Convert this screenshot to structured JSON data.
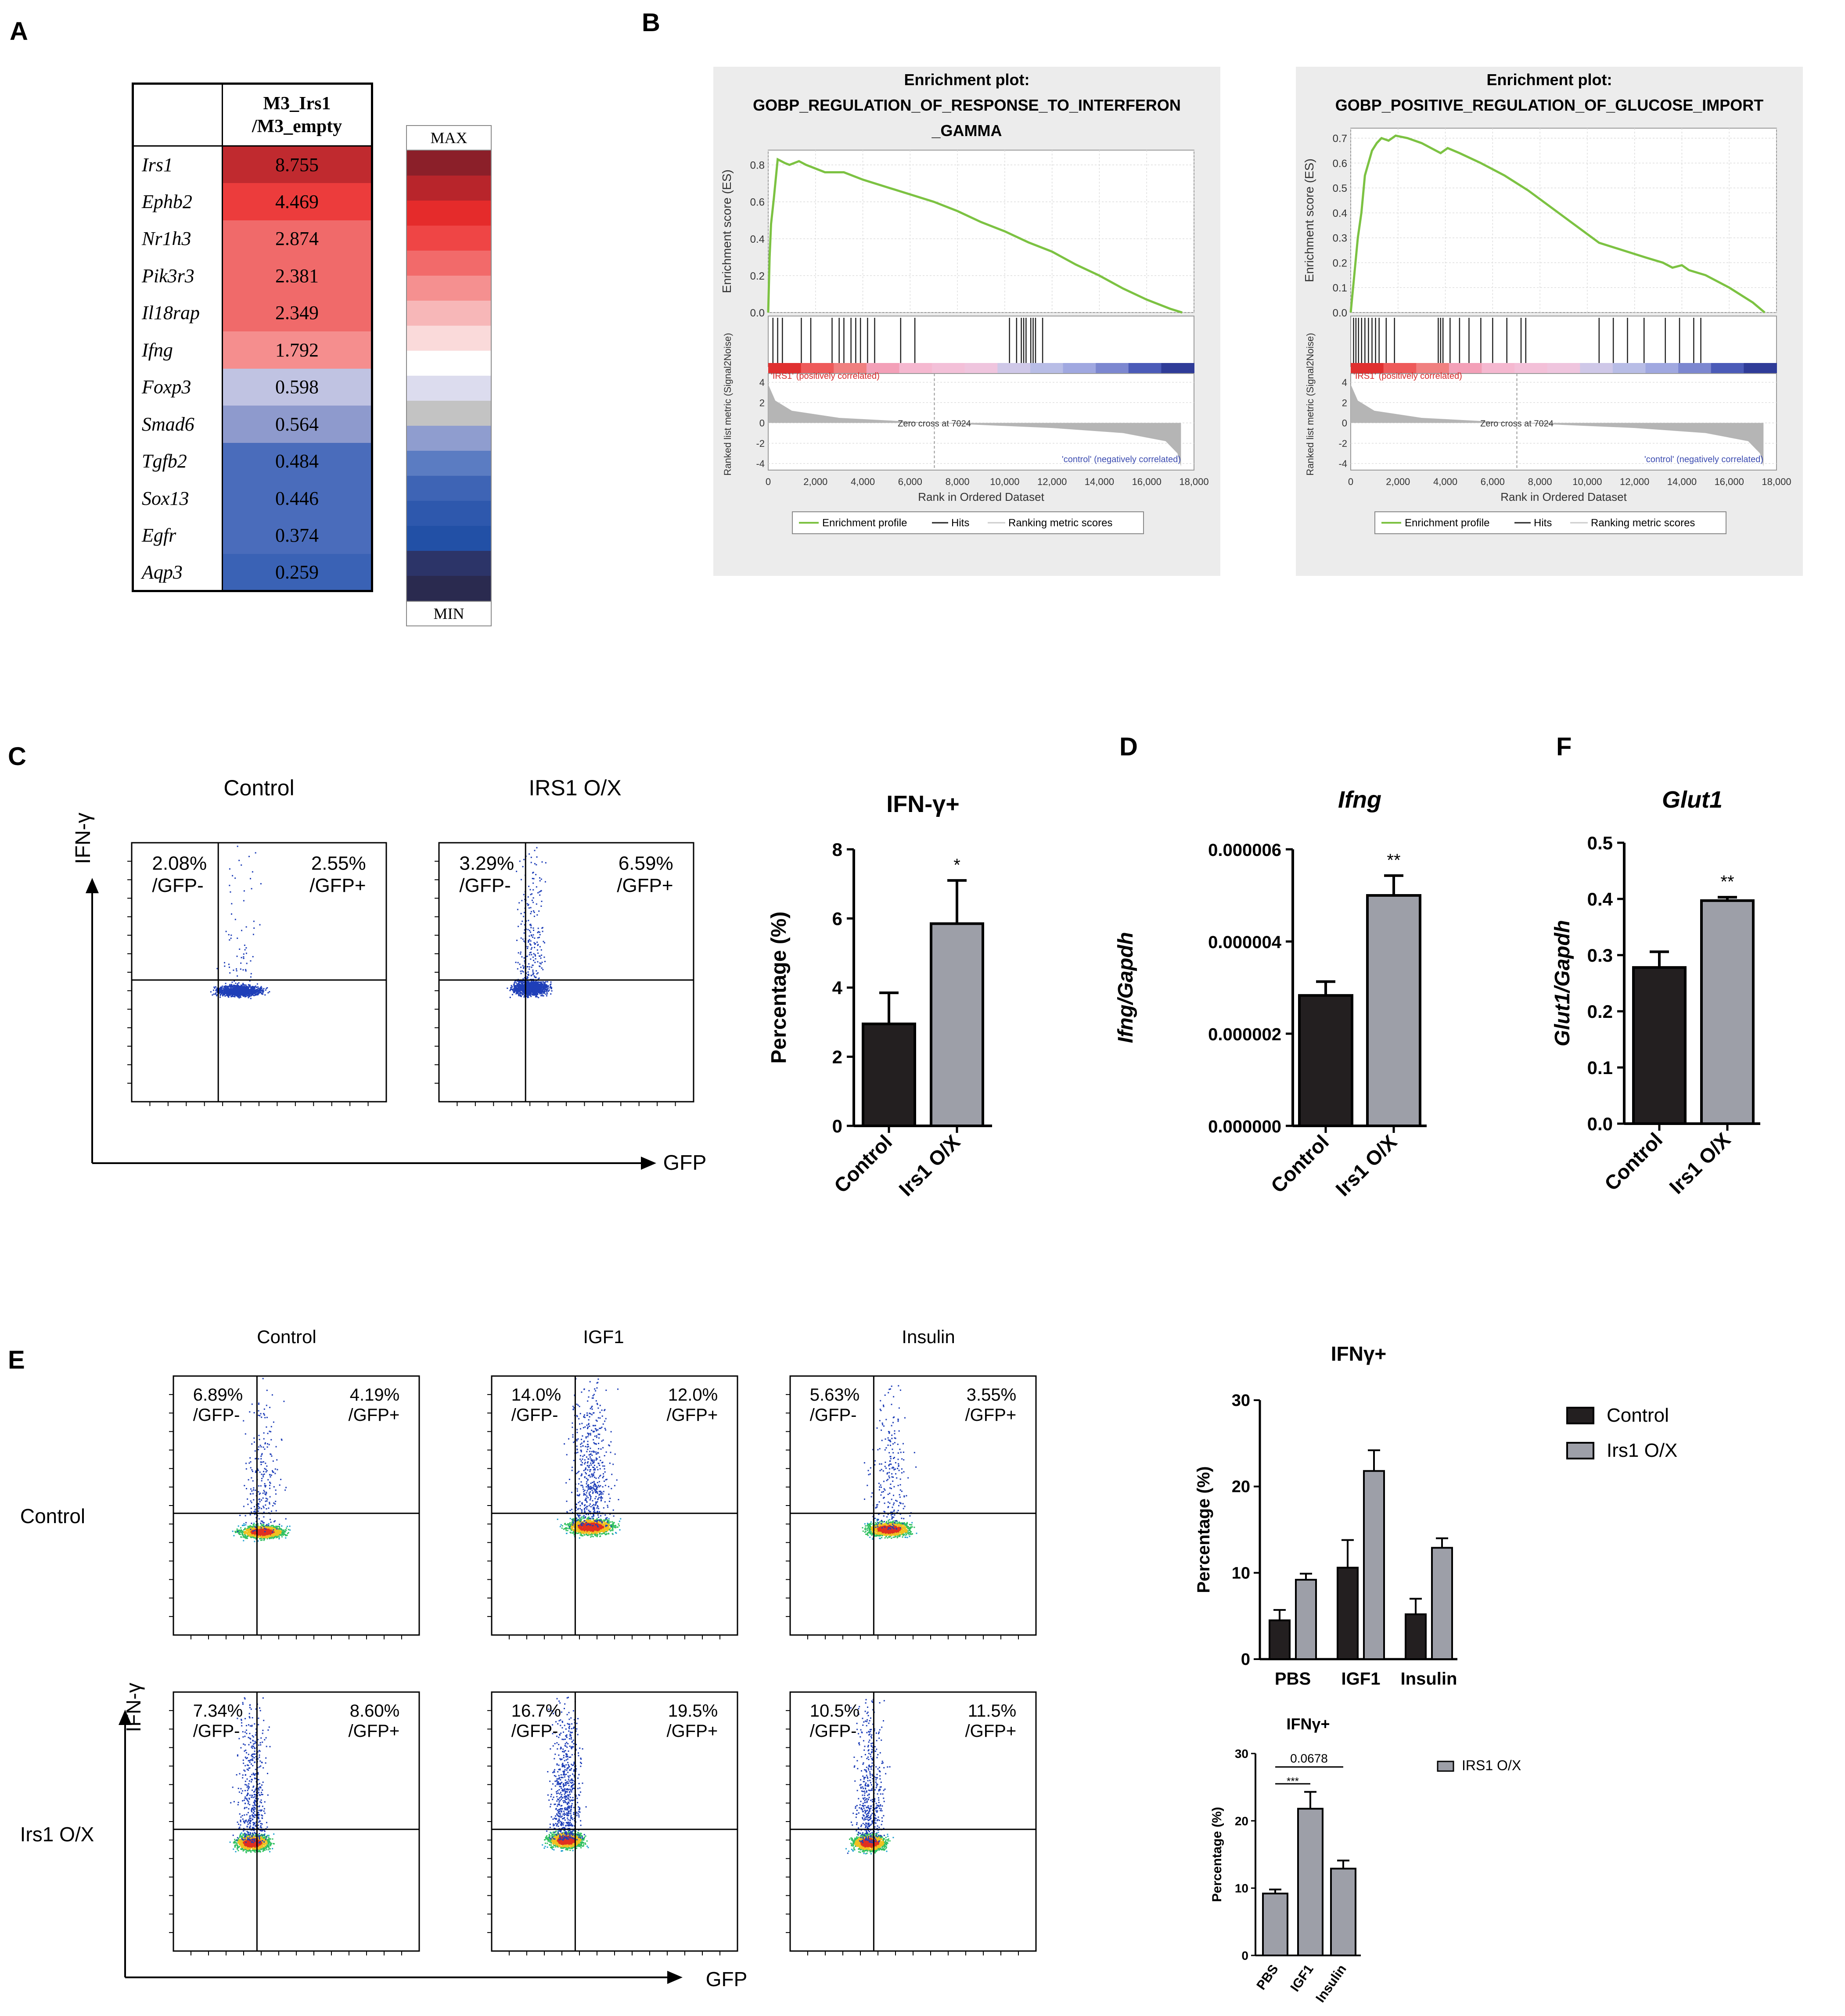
{
  "panel_labels": {
    "a": "A",
    "b": "B",
    "c": "C",
    "d": "D",
    "e": "E",
    "f": "F"
  },
  "heatmap": {
    "header_line1": "M3_Irs1",
    "header_line2": "/M3_empty",
    "rows": [
      {
        "gene": "Irs1",
        "value": "8.755",
        "color": "#c02a2f"
      },
      {
        "gene": "Ephb2",
        "value": "4.469",
        "color": "#ec3c3c"
      },
      {
        "gene": "Nr1h3",
        "value": "2.874",
        "color": "#f06a6a"
      },
      {
        "gene": "Pik3r3",
        "value": "2.381",
        "color": "#f06a6a"
      },
      {
        "gene": "Il18rap",
        "value": "2.349",
        "color": "#f06a6a"
      },
      {
        "gene": "Ifng",
        "value": "1.792",
        "color": "#f58e8e"
      },
      {
        "gene": "Foxp3",
        "value": "0.598",
        "color": "#c0c3e2"
      },
      {
        "gene": "Smad6",
        "value": "0.564",
        "color": "#8e9acd"
      },
      {
        "gene": "Tgfb2",
        "value": "0.484",
        "color": "#4a6cbb"
      },
      {
        "gene": "Sox13",
        "value": "0.446",
        "color": "#4a6cbb"
      },
      {
        "gene": "Egfr",
        "value": "0.374",
        "color": "#4a6cbb"
      },
      {
        "gene": "Aqp3",
        "value": "0.259",
        "color": "#3a62b5"
      }
    ],
    "scale_max": "MAX",
    "scale_min": "MIN",
    "scale_colors": [
      "#8b1f29",
      "#b8252b",
      "#e52b2b",
      "#ef4545",
      "#f26a6a",
      "#f59090",
      "#f7b7b8",
      "#fadada",
      "#ffffff",
      "#dcdcee",
      "#c3c3c3",
      "#8f9dcf",
      "#5b7cc2",
      "#3e64b5",
      "#2e58ad",
      "#2250a6",
      "#2c3468",
      "#2a2a4f"
    ]
  },
  "chart_data": [
    {
      "id": "gsea-ifng",
      "type": "line",
      "title_line1": "Enrichment plot:",
      "title_line2": "GOBP_REGULATION_OF_RESPONSE_TO_INTERFERON",
      "title_line3": "_GAMMA",
      "ylabel": "Enrichment score (ES)",
      "yticks": [
        "0.0",
        "0.2",
        "0.4",
        "0.6",
        "0.8"
      ],
      "ylim": [
        0,
        0.88
      ],
      "es_x": [
        0,
        60,
        120,
        240,
        400,
        700,
        900,
        1300,
        1600,
        2000,
        2400,
        3200,
        4000,
        5000,
        6000,
        7000,
        8000,
        9000,
        10000,
        11000,
        12000,
        13000,
        14000,
        15000,
        16000,
        17000,
        17500
      ],
      "es_y": [
        0,
        0.3,
        0.48,
        0.62,
        0.83,
        0.81,
        0.8,
        0.82,
        0.8,
        0.78,
        0.76,
        0.76,
        0.72,
        0.68,
        0.64,
        0.6,
        0.55,
        0.49,
        0.44,
        0.38,
        0.33,
        0.26,
        0.2,
        0.13,
        0.07,
        0.02,
        0
      ],
      "hits": [
        200,
        400,
        600,
        1400,
        1800,
        2700,
        3000,
        3200,
        3500,
        3700,
        3900,
        4200,
        4500,
        5600,
        6200,
        10200,
        10500,
        10700,
        10800,
        10900,
        11100,
        11200,
        11300,
        11600
      ],
      "rank_ylabel": "Ranked list metric (Signal2Noise)",
      "rank_yticks": [
        "4",
        "2",
        "0",
        "-2",
        "-4"
      ],
      "xlabel": "Rank in Ordered Dataset",
      "xticks": [
        "0",
        "2,000",
        "4,000",
        "6,000",
        "8,000",
        "10,000",
        "12,000",
        "14,000",
        "16,000",
        "18,000"
      ],
      "pos_label": "'IRS1' (positively correlated)",
      "neg_label": "'control' (negatively correlated)",
      "zero_cross": "Zero cross at 7024",
      "legend": [
        "Enrichment profile",
        "Hits",
        "Ranking metric scores"
      ],
      "es_color": "#7cc242"
    },
    {
      "id": "gsea-glucose",
      "type": "line",
      "title_line1": "Enrichment plot:",
      "title_line2": "GOBP_POSITIVE_REGULATION_OF_GLUCOSE_IMPORT",
      "title_line3": "",
      "ylabel": "Enrichment score (ES)",
      "yticks": [
        "0.0",
        "0.1",
        "0.2",
        "0.3",
        "0.4",
        "0.5",
        "0.6",
        "0.7"
      ],
      "ylim": [
        0,
        0.74
      ],
      "es_x": [
        0,
        100,
        200,
        300,
        450,
        600,
        750,
        900,
        1100,
        1300,
        1600,
        1900,
        2400,
        3000,
        3800,
        4100,
        4600,
        5500,
        6500,
        7500,
        8500,
        9500,
        10500,
        11500,
        12500,
        13200,
        13600,
        14000,
        14300,
        15000,
        16000,
        17000,
        17500
      ],
      "es_y": [
        0,
        0.1,
        0.2,
        0.3,
        0.4,
        0.55,
        0.6,
        0.65,
        0.68,
        0.7,
        0.69,
        0.71,
        0.7,
        0.68,
        0.64,
        0.66,
        0.64,
        0.6,
        0.55,
        0.49,
        0.42,
        0.35,
        0.28,
        0.25,
        0.22,
        0.2,
        0.18,
        0.19,
        0.17,
        0.15,
        0.1,
        0.04,
        0
      ],
      "hits": [
        120,
        220,
        330,
        460,
        600,
        750,
        900,
        1050,
        1200,
        1500,
        1850,
        3700,
        3800,
        3900,
        4200,
        4600,
        5000,
        5500,
        6000,
        6600,
        7200,
        7400,
        10500,
        11100,
        11700,
        12400,
        13300,
        13900,
        14500,
        14800
      ],
      "rank_ylabel": "Ranked list metric (Signal2Noise)",
      "rank_yticks": [
        "4",
        "2",
        "0",
        "-2",
        "-4"
      ],
      "xlabel": "Rank in Ordered Dataset",
      "xticks": [
        "0",
        "2,000",
        "4,000",
        "6,000",
        "8,000",
        "10,000",
        "12,000",
        "14,000",
        "16,000",
        "18,000"
      ],
      "pos_label": "'IRS1' (positively correlated)",
      "neg_label": "'control' (negatively correlated)",
      "zero_cross": "Zero cross at 7024",
      "legend": [
        "Enrichment profile",
        "Hits",
        "Ranking metric scores"
      ],
      "es_color": "#7cc242"
    },
    {
      "id": "c-bar",
      "type": "bar",
      "title": "IFN-γ+",
      "ylabel": "Percentage (%)",
      "categories": [
        "Control",
        "Irs1 O/X"
      ],
      "values": [
        2.95,
        5.85
      ],
      "errors": [
        0.9,
        1.25
      ],
      "colors": [
        "#231f20",
        "#9d9fa8"
      ],
      "ylim": [
        0,
        8
      ],
      "yticks": [
        "0",
        "2",
        "4",
        "6",
        "8"
      ],
      "significance": "*"
    },
    {
      "id": "d-bar",
      "type": "bar",
      "title": "Ifng",
      "ylabel": "Ifng/Gapdh",
      "categories": [
        "Control",
        "Irs1 O/X"
      ],
      "values": [
        2.83e-06,
        5e-06
      ],
      "errors": [
        3e-07,
        4.3e-07
      ],
      "colors": [
        "#231f20",
        "#9d9fa8"
      ],
      "ylim": [
        0,
        6e-06
      ],
      "yticks": [
        "0.000000",
        "0.000002",
        "0.000004",
        "0.000006"
      ],
      "significance": "**"
    },
    {
      "id": "f-bar",
      "type": "bar",
      "title": "Glut1",
      "ylabel": "Glut1/Gapdh",
      "categories": [
        "Control",
        "Irs1 O/X"
      ],
      "values": [
        0.278,
        0.397
      ],
      "errors": [
        0.028,
        0.006
      ],
      "colors": [
        "#231f20",
        "#9d9fa8"
      ],
      "ylim": [
        0,
        0.5
      ],
      "yticks": [
        "0.0",
        "0.1",
        "0.2",
        "0.3",
        "0.4",
        "0.5"
      ],
      "significance": "**"
    },
    {
      "id": "e-bar-main",
      "type": "bar",
      "title": "IFNγ+",
      "ylabel": "Percentage (%)",
      "categories": [
        "PBS",
        "IGF1",
        "Insulin"
      ],
      "series": [
        {
          "name": "Control",
          "values": [
            4.5,
            10.6,
            5.2
          ],
          "errors": [
            1.2,
            3.2,
            1.8
          ],
          "color": "#231f20"
        },
        {
          "name": "Irs1 O/X",
          "values": [
            9.2,
            21.8,
            12.9
          ],
          "errors": [
            0.7,
            2.4,
            1.1
          ],
          "color": "#9d9fa8"
        }
      ],
      "ylim": [
        0,
        30
      ],
      "yticks": [
        "0",
        "10",
        "20",
        "30"
      ],
      "legend": [
        "Control",
        "Irs1 O/X"
      ]
    },
    {
      "id": "e-bar-small",
      "type": "bar",
      "title": "IFNγ+",
      "ylabel": "Percentage (%)",
      "categories": [
        "PBS",
        "IGF1",
        "Insulin"
      ],
      "values": [
        9.2,
        21.8,
        12.9
      ],
      "errors": [
        0.6,
        2.5,
        1.2
      ],
      "color": "#9d9fa8",
      "ylim": [
        0,
        30
      ],
      "yticks": [
        "0",
        "10",
        "20",
        "30"
      ],
      "legend": "IRS1  O/X",
      "sig_top": "0.0678",
      "sig_mid": "***"
    }
  ],
  "flow_c": {
    "col_titles": [
      "Control",
      "IRS1 O/X"
    ],
    "plots": [
      {
        "ul_pct": "2.08%",
        "ul_sub": "/GFP-",
        "ur_pct": "2.55%",
        "ur_sub": "/GFP+"
      },
      {
        "ul_pct": "3.29%",
        "ul_sub": "/GFP-",
        "ur_pct": "6.59%",
        "ur_sub": "/GFP+"
      }
    ],
    "y_axis": "IFN-γ",
    "x_axis": "GFP"
  },
  "flow_e": {
    "col_titles": [
      "Control",
      "IGF1",
      "Insulin"
    ],
    "row_titles": [
      "Control",
      "Irs1 O/X"
    ],
    "plots": [
      {
        "ul_pct": "6.89%",
        "ul_sub": "/GFP-",
        "ur_pct": "4.19%",
        "ur_sub": "/GFP+"
      },
      {
        "ul_pct": "14.0%",
        "ul_sub": "/GFP-",
        "ur_pct": "12.0%",
        "ur_sub": "/GFP+"
      },
      {
        "ul_pct": "5.63%",
        "ul_sub": "/GFP-",
        "ur_pct": "3.55%",
        "ur_sub": "/GFP+"
      },
      {
        "ul_pct": "7.34%",
        "ul_sub": "/GFP-",
        "ur_pct": "8.60%",
        "ur_sub": "/GFP+"
      },
      {
        "ul_pct": "16.7%",
        "ul_sub": "/GFP-",
        "ur_pct": "19.5%",
        "ur_sub": "/GFP+"
      },
      {
        "ul_pct": "10.5%",
        "ul_sub": "/GFP-",
        "ur_pct": "11.5%",
        "ur_sub": "/GFP+"
      }
    ],
    "y_axis": "IFN-γ",
    "x_axis": "GFP"
  }
}
